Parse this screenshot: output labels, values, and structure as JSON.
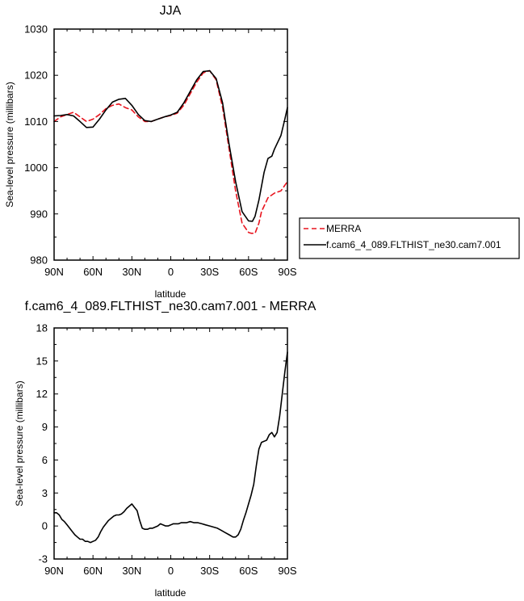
{
  "chart_data": [
    {
      "type": "line",
      "title": "JJA",
      "xlabel": "latitude",
      "ylabel": "Sea-level pressure (millibars)",
      "xlim": [
        90,
        -90
      ],
      "ylim": [
        980,
        1030
      ],
      "x_ticks": [
        90,
        60,
        30,
        0,
        -30,
        -60,
        -90
      ],
      "x_tick_labels": [
        "90N",
        "60N",
        "30N",
        "0",
        "30S",
        "60S",
        "90S"
      ],
      "y_ticks": [
        980,
        990,
        1000,
        1010,
        1020,
        1030
      ],
      "y_tick_labels": [
        "980",
        "990",
        "1000",
        "1010",
        "1020",
        "1030"
      ],
      "legend_position": "right",
      "series": [
        {
          "name": "MERRA",
          "color": "#e8141e",
          "dash": true,
          "x": [
            90,
            85,
            80,
            75,
            70,
            65,
            60,
            55,
            50,
            45,
            40,
            35,
            30,
            25,
            20,
            15,
            10,
            5,
            0,
            -5,
            -10,
            -15,
            -20,
            -25,
            -30,
            -35,
            -40,
            -45,
            -50,
            -55,
            -60,
            -62,
            -65,
            -68,
            -70,
            -75,
            -80,
            -85,
            -90
          ],
          "y": [
            1010,
            1011,
            1011.5,
            1012,
            1011,
            1010,
            1010.5,
            1011.5,
            1012.8,
            1013.5,
            1013.8,
            1013,
            1012.5,
            1011,
            1010,
            1010,
            1010.5,
            1011,
            1011.3,
            1011.8,
            1013.5,
            1016,
            1018.5,
            1020.5,
            1021,
            1019,
            1013,
            1004,
            995,
            988,
            986,
            985.8,
            985.8,
            988,
            990.5,
            993.5,
            994.5,
            995,
            997
          ]
        },
        {
          "name": "f.cam6_4_089.FLTHIST_ne30.cam7.001",
          "color": "#000000",
          "dash": false,
          "x": [
            90,
            85,
            80,
            75,
            70,
            65,
            60,
            55,
            50,
            45,
            40,
            35,
            30,
            25,
            20,
            15,
            10,
            5,
            0,
            -5,
            -10,
            -15,
            -20,
            -25,
            -30,
            -35,
            -40,
            -45,
            -50,
            -55,
            -60,
            -63,
            -65,
            -68,
            -70,
            -72,
            -75,
            -78,
            -80,
            -85,
            -88,
            -90
          ],
          "y": [
            1011.2,
            1011.3,
            1011.5,
            1011.2,
            1010,
            1008.7,
            1008.8,
            1010.5,
            1012.5,
            1014.2,
            1014.8,
            1015,
            1013.5,
            1011.5,
            1010.2,
            1010,
            1010.5,
            1011,
            1011.4,
            1012,
            1014,
            1016.5,
            1019,
            1020.8,
            1021,
            1019.3,
            1014,
            1005,
            997,
            990.5,
            988.5,
            988.4,
            989.5,
            993,
            996,
            999,
            1002,
            1002.5,
            1004,
            1007,
            1010.5,
            1013
          ]
        }
      ]
    },
    {
      "type": "line",
      "title": "f.cam6_4_089.FLTHIST_ne30.cam7.001 - MERRA",
      "xlabel": "latitude",
      "ylabel": "Sea-level pressure (millibars)",
      "xlim": [
        90,
        -90
      ],
      "ylim": [
        -3,
        18
      ],
      "x_ticks": [
        90,
        60,
        30,
        0,
        -30,
        -60,
        -90
      ],
      "x_tick_labels": [
        "90N",
        "60N",
        "30N",
        "0",
        "30S",
        "60S",
        "90S"
      ],
      "y_ticks": [
        -3,
        0,
        3,
        6,
        9,
        12,
        15,
        18
      ],
      "y_tick_labels": [
        "-3",
        "0",
        "3",
        "6",
        "9",
        "12",
        "15",
        "18"
      ],
      "series": [
        {
          "color": "#000000",
          "dash": false,
          "x": [
            90,
            88,
            86,
            84,
            82,
            80,
            78,
            76,
            74,
            72,
            70,
            68,
            66,
            64,
            62,
            60,
            58,
            56,
            54,
            52,
            50,
            48,
            46,
            44,
            42,
            40,
            38,
            36,
            34,
            32,
            30,
            28,
            26,
            24,
            22,
            20,
            18,
            16,
            14,
            12,
            10,
            8,
            6,
            4,
            2,
            0,
            -2,
            -4,
            -6,
            -8,
            -10,
            -12,
            -15,
            -18,
            -21,
            -24,
            -27,
            -30,
            -33,
            -36,
            -39,
            -42,
            -45,
            -48,
            -50,
            -52,
            -54,
            -56,
            -58,
            -60,
            -62,
            -64,
            -66,
            -68,
            -70,
            -72,
            -74,
            -76,
            -78,
            -80,
            -82,
            -84,
            -86,
            -88,
            -90
          ],
          "y": [
            1.2,
            1.2,
            1.0,
            0.6,
            0.4,
            0.1,
            -0.2,
            -0.5,
            -0.8,
            -1.0,
            -1.2,
            -1.2,
            -1.4,
            -1.4,
            -1.5,
            -1.4,
            -1.3,
            -1.0,
            -0.5,
            -0.1,
            0.2,
            0.5,
            0.7,
            0.9,
            1.0,
            1.0,
            1.1,
            1.3,
            1.6,
            1.8,
            2.0,
            1.7,
            1.4,
            0.5,
            -0.2,
            -0.3,
            -0.3,
            -0.2,
            -0.2,
            -0.1,
            0.0,
            0.2,
            0.1,
            0.0,
            0.0,
            0.1,
            0.2,
            0.2,
            0.2,
            0.3,
            0.3,
            0.3,
            0.4,
            0.3,
            0.3,
            0.2,
            0.1,
            0.0,
            -0.1,
            -0.2,
            -0.4,
            -0.6,
            -0.8,
            -1.0,
            -1.0,
            -0.8,
            -0.3,
            0.5,
            1.2,
            2.0,
            2.8,
            3.8,
            5.5,
            7.0,
            7.6,
            7.7,
            7.8,
            8.3,
            8.5,
            8.1,
            8.5,
            10.0,
            12.0,
            14.0,
            15.8
          ]
        }
      ]
    }
  ]
}
